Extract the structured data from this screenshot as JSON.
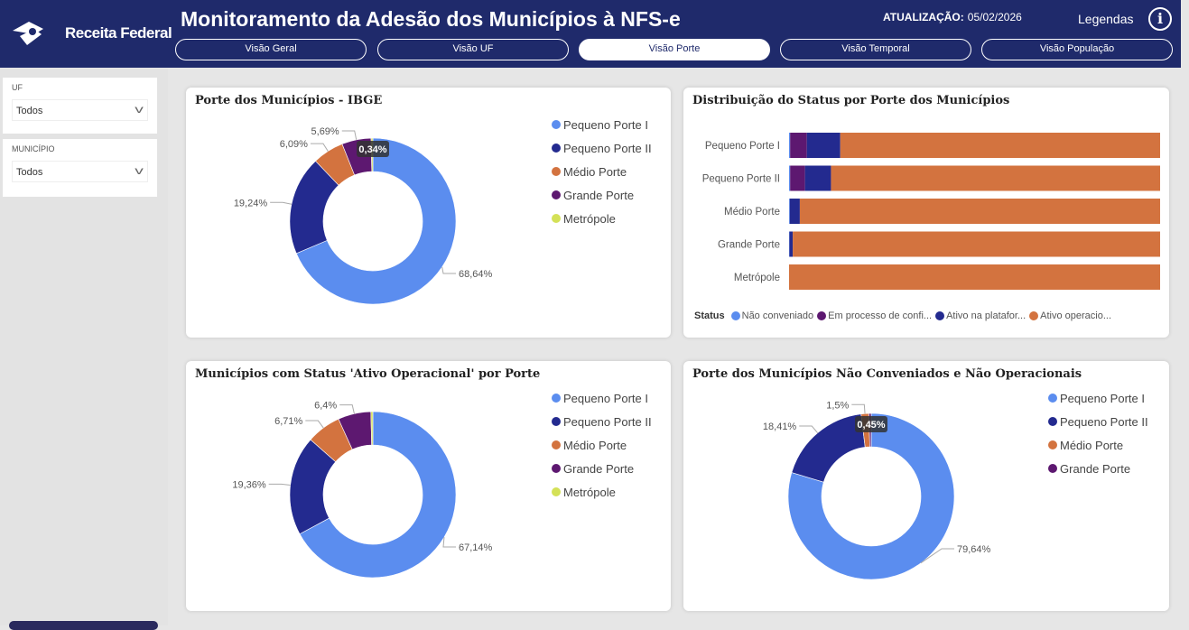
{
  "header": {
    "logo_text": "Receita Federal",
    "title": "Monitoramento da Adesão dos Municípios à NFS-e",
    "update_label": "ATUALIZAÇÃO:",
    "update_date": "05/02/2026",
    "legend_link": "Legendas",
    "info_icon": "info-icon"
  },
  "tabs": [
    {
      "label": "Visão Geral",
      "active": false
    },
    {
      "label": "Visão UF",
      "active": false
    },
    {
      "label": "Visão Porte",
      "active": true
    },
    {
      "label": "Visão Temporal",
      "active": false
    },
    {
      "label": "Visão População",
      "active": false
    }
  ],
  "filters": [
    {
      "label": "UF",
      "value": "Todos"
    },
    {
      "label": "MUNICÍPIO",
      "value": "Todos"
    }
  ],
  "colors": {
    "Pequeno Porte I": "#5b8def",
    "Pequeno Porte II": "#232a8f",
    "Médio Porte": "#d3733f",
    "Grande Porte": "#5d1870",
    "Metrópole": "#d4e157",
    "header": "#1f2a6b"
  },
  "chart_data": [
    {
      "type": "pie",
      "title": "Porte dos Municípios - IBGE",
      "categories": [
        "Pequeno Porte I",
        "Pequeno Porte II",
        "Médio Porte",
        "Grande Porte",
        "Metrópole"
      ],
      "values": [
        68.64,
        19.24,
        6.09,
        5.69,
        0.34
      ],
      "labels": [
        "68,64%",
        "19,24%",
        "6,09%",
        "5,69%",
        "0,34%"
      ],
      "legend": [
        "Pequeno Porte I",
        "Pequeno Porte II",
        "Médio Porte",
        "Grande Porte",
        "Metrópole"
      ],
      "legend_position": "right"
    },
    {
      "type": "bar",
      "orientation": "horizontal",
      "stacked": "100%",
      "title": "Distribuição do Status por Porte dos Municípios",
      "categories": [
        "Pequeno Porte I",
        "Pequeno Porte II",
        "Médio Porte",
        "Grande Porte",
        "Metrópole"
      ],
      "legend_title": "Status",
      "series": [
        {
          "name": "Não conveniado",
          "color": "#5b8def",
          "values": [
            0.3,
            0.3,
            0.2,
            0.1,
            0
          ]
        },
        {
          "name": "Em processo de confi...",
          "color": "#5d1870",
          "values": [
            4.5,
            4,
            0,
            0,
            0
          ]
        },
        {
          "name": "Ativo na platafor...",
          "color": "#232a8f",
          "values": [
            9,
            7,
            2.7,
            0.9,
            0
          ]
        },
        {
          "name": "Ativo operacio...",
          "color": "#d3733f",
          "values": [
            86.2,
            88.7,
            97.1,
            99,
            100
          ]
        }
      ],
      "legend_position": "bottom"
    },
    {
      "type": "pie",
      "title": "Municípios com Status 'Ativo Operacional' por Porte",
      "categories": [
        "Pequeno Porte I",
        "Pequeno Porte II",
        "Médio Porte",
        "Grande Porte",
        "Metrópole"
      ],
      "values": [
        67.14,
        19.36,
        6.71,
        6.4,
        0.39
      ],
      "labels": [
        "67,14%",
        "19,36%",
        "6,71%",
        "6,4%",
        ""
      ],
      "legend": [
        "Pequeno Porte I",
        "Pequeno Porte II",
        "Médio Porte",
        "Grande Porte",
        "Metrópole"
      ],
      "legend_position": "right"
    },
    {
      "type": "pie",
      "title": "Porte dos Municípios Não Conveniados e Não Operacionais",
      "categories": [
        "Pequeno Porte I",
        "Pequeno Porte II",
        "Médio Porte",
        "Grande Porte"
      ],
      "values": [
        79.64,
        18.41,
        1.5,
        0.45
      ],
      "labels": [
        "79,64%",
        "18,41%",
        "1,5%",
        "0,45%"
      ],
      "legend": [
        "Pequeno Porte I",
        "Pequeno Porte II",
        "Médio Porte",
        "Grande Porte"
      ],
      "legend_position": "right"
    }
  ]
}
